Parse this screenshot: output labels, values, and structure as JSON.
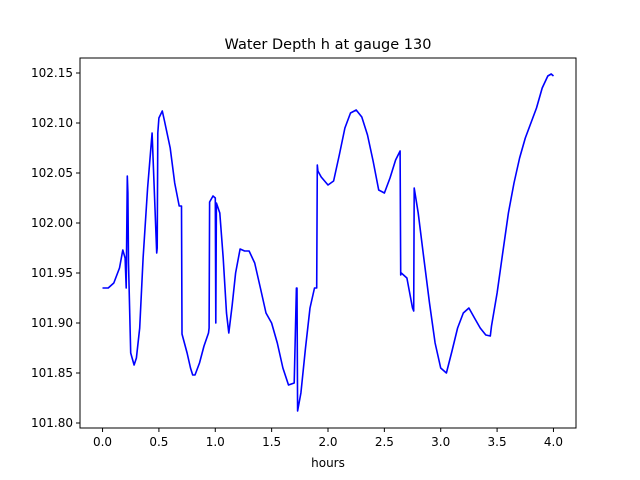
{
  "chart_data": {
    "type": "line",
    "title": "Water Depth h at gauge 130",
    "xlabel": "hours",
    "ylabel": "",
    "xlim": [
      -0.2,
      4.2
    ],
    "ylim": [
      101.795,
      102.165
    ],
    "xticks": [
      0.0,
      0.5,
      1.0,
      1.5,
      2.0,
      2.5,
      3.0,
      3.5,
      4.0
    ],
    "xtick_labels": [
      "0.0",
      "0.5",
      "1.0",
      "1.5",
      "2.0",
      "2.5",
      "3.0",
      "3.5",
      "4.0"
    ],
    "yticks": [
      101.8,
      101.85,
      101.9,
      101.95,
      102.0,
      102.05,
      102.1,
      102.15
    ],
    "ytick_labels": [
      "101.80",
      "101.85",
      "101.90",
      "101.95",
      "102.00",
      "102.05",
      "102.10",
      "102.15"
    ],
    "grid": false,
    "series": [
      {
        "color": "#0000ff",
        "x": [
          0.0,
          0.05,
          0.1,
          0.15,
          0.18,
          0.2,
          0.21,
          0.22,
          0.225,
          0.23,
          0.25,
          0.28,
          0.3,
          0.33,
          0.36,
          0.4,
          0.44,
          0.48,
          0.485,
          0.49,
          0.5,
          0.53,
          0.55,
          0.6,
          0.64,
          0.68,
          0.7,
          0.705,
          0.75,
          0.78,
          0.8,
          0.82,
          0.86,
          0.9,
          0.94,
          0.945,
          0.95,
          0.98,
          1.0,
          1.005,
          1.01,
          1.04,
          1.07,
          1.1,
          1.12,
          1.15,
          1.18,
          1.22,
          1.26,
          1.3,
          1.35,
          1.4,
          1.45,
          1.5,
          1.55,
          1.6,
          1.65,
          1.7,
          1.72,
          1.725,
          1.73,
          1.76,
          1.8,
          1.84,
          1.88,
          1.9,
          1.905,
          1.91,
          1.94,
          1.97,
          2.0,
          2.05,
          2.1,
          2.15,
          2.2,
          2.25,
          2.3,
          2.35,
          2.4,
          2.45,
          2.5,
          2.55,
          2.6,
          2.64,
          2.645,
          2.65,
          2.7,
          2.75,
          2.76,
          2.765,
          2.8,
          2.85,
          2.9,
          2.95,
          3.0,
          3.05,
          3.1,
          3.15,
          3.2,
          3.25,
          3.3,
          3.35,
          3.4,
          3.44,
          3.45,
          3.5,
          3.55,
          3.6,
          3.65,
          3.7,
          3.75,
          3.8,
          3.85,
          3.9,
          3.95,
          3.98,
          4.0
        ],
        "values": [
          101.935,
          101.935,
          101.94,
          101.955,
          101.973,
          101.965,
          101.935,
          102.047,
          102.03,
          101.96,
          101.87,
          101.858,
          101.865,
          101.895,
          101.965,
          102.035,
          102.09,
          101.97,
          101.975,
          102.09,
          102.105,
          102.112,
          102.102,
          102.075,
          102.04,
          102.017,
          102.017,
          101.889,
          101.87,
          101.855,
          101.848,
          101.848,
          101.86,
          101.877,
          101.89,
          101.895,
          102.021,
          102.027,
          102.025,
          101.9,
          102.02,
          102.01,
          101.965,
          101.91,
          101.89,
          101.918,
          101.95,
          101.974,
          101.972,
          101.972,
          101.96,
          101.935,
          101.91,
          101.9,
          101.88,
          101.855,
          101.838,
          101.84,
          101.935,
          101.935,
          101.812,
          101.83,
          101.875,
          101.915,
          101.935,
          101.935,
          102.058,
          102.052,
          102.046,
          102.042,
          102.038,
          102.042,
          102.068,
          102.095,
          102.11,
          102.113,
          102.106,
          102.088,
          102.062,
          102.033,
          102.03,
          102.045,
          102.063,
          102.072,
          101.948,
          101.95,
          101.945,
          101.915,
          101.912,
          102.035,
          102.01,
          101.965,
          101.92,
          101.88,
          101.855,
          101.85,
          101.872,
          101.895,
          101.91,
          101.915,
          101.905,
          101.895,
          101.888,
          101.887,
          101.897,
          101.93,
          101.97,
          102.01,
          102.04,
          102.065,
          102.085,
          102.1,
          102.115,
          102.135,
          102.147,
          102.149,
          102.147
        ]
      }
    ]
  }
}
